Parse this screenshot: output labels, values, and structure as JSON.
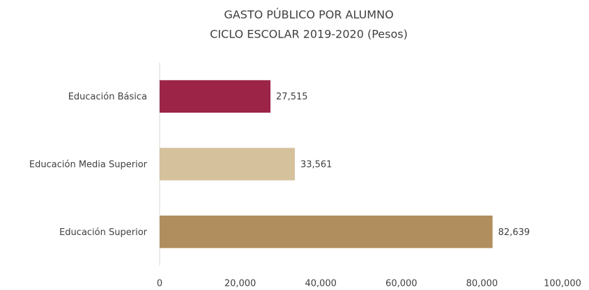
{
  "chart_data": {
    "type": "hbar",
    "title": "GASTO PÚBLICO POR ALUMNO",
    "subtitle": "CICLO ESCOLAR 2019-2020 (Pesos)",
    "categories": [
      "Educación Básica",
      "Educación Media Superior",
      "Educación Superior"
    ],
    "values": [
      27515,
      33561,
      82639
    ],
    "value_labels": [
      "27,515",
      "33,561",
      "82,639"
    ],
    "colors": [
      "#9b2447",
      "#d5c29c",
      "#b08e5e"
    ],
    "xlim": [
      0,
      100000
    ],
    "xticks": [
      0,
      {
        "value": 20000,
        "label": "20,000"
      },
      {
        "value": 40000,
        "label": "40,000"
      },
      {
        "value": 60000,
        "label": "60,000"
      },
      {
        "value": 80000,
        "label": "80,000"
      },
      {
        "value": 100000,
        "label": "100,000"
      }
    ],
    "grid": false
  }
}
